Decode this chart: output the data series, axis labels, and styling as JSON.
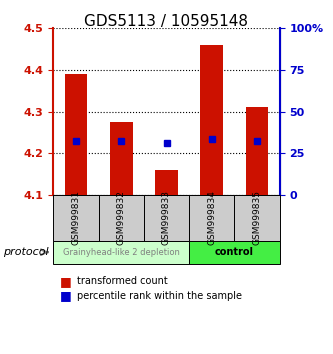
{
  "title": "GDS5113 / 10595148",
  "samples": [
    "GSM999831",
    "GSM999832",
    "GSM999833",
    "GSM999834",
    "GSM999835"
  ],
  "bar_bottoms": [
    4.1,
    4.1,
    4.1,
    4.1,
    4.1
  ],
  "bar_tops": [
    4.39,
    4.275,
    4.16,
    4.46,
    4.31
  ],
  "blue_dots": [
    4.23,
    4.23,
    4.225,
    4.235,
    4.23
  ],
  "ylim": [
    4.1,
    4.5
  ],
  "yticks": [
    4.1,
    4.2,
    4.3,
    4.4,
    4.5
  ],
  "right_yticks": [
    0,
    25,
    50,
    75,
    100
  ],
  "bar_color": "#cc1100",
  "dot_color": "#0000cc",
  "group1_label": "Grainyhead-like 2 depletion",
  "group2_label": "control",
  "group1_color": "#ccffcc",
  "group2_color": "#44ee44",
  "protocol_label": "protocol",
  "legend_bar_label": "transformed count",
  "legend_dot_label": "percentile rank within the sample",
  "title_fontsize": 11,
  "bar_width": 0.5,
  "background_color": "#ffffff",
  "sample_box_color": "#cccccc"
}
